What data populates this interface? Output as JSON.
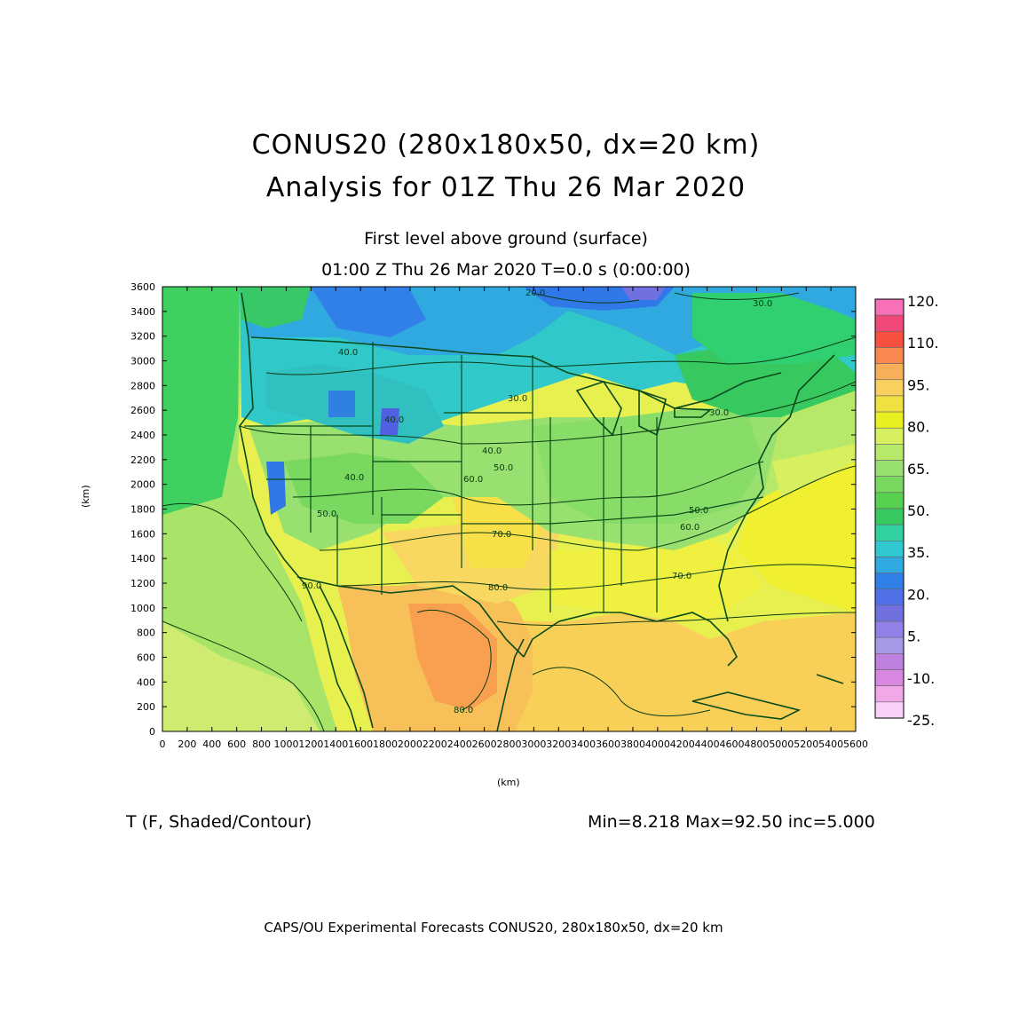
{
  "title": {
    "line1": "CONUS20 (280x180x50, dx=20 km)",
    "line2": "Analysis for 01Z Thu 26 Mar 2020"
  },
  "subtitle": {
    "level": "First level above ground (surface)",
    "time": "01:00 Z Thu 26 Mar 2020    T=0.0 s (0:00:00)"
  },
  "field": {
    "label": "T (F, Shaded/Contour)",
    "stats": "Min=8.218 Max=92.50 inc=5.000"
  },
  "footer": "CAPS/OU Experimental Forecasts   CONUS20, 280x180x50, dx=20 km",
  "axes": {
    "x_unit": "(km)",
    "y_unit": "(km)",
    "x_ticks": [
      "0",
      "200",
      "400",
      "600",
      "800",
      "1000",
      "1200",
      "1400",
      "1600",
      "1800",
      "2000",
      "2200",
      "2400",
      "2600",
      "2800",
      "3000",
      "3200",
      "3400",
      "3600",
      "3800",
      "4000",
      "4200",
      "4400",
      "4600",
      "4800",
      "5000",
      "5200",
      "5400",
      "5600"
    ],
    "y_ticks": [
      "0",
      "200",
      "400",
      "600",
      "800",
      "1000",
      "1200",
      "1400",
      "1600",
      "1800",
      "2000",
      "2200",
      "2400",
      "2600",
      "2800",
      "3000",
      "3200",
      "3400",
      "3600"
    ],
    "xlim": [
      0,
      5600
    ],
    "ylim": [
      0,
      3600
    ]
  },
  "colorbar": {
    "labels": [
      "120.",
      "110.",
      "95.",
      "80.",
      "65.",
      "50.",
      "35.",
      "20.",
      "5.",
      "-10.",
      "-25."
    ],
    "colors_top_to_bottom": [
      "#f870b8",
      "#f04878",
      "#f85040",
      "#f88850",
      "#f8b058",
      "#f8d060",
      "#f0e040",
      "#e8f020",
      "#d8f060",
      "#b8e868",
      "#98e070",
      "#78d860",
      "#58d050",
      "#38c860",
      "#30d0a0",
      "#30c8d0",
      "#30a8e0",
      "#3080e8",
      "#5070e8",
      "#7070e0",
      "#9080e8",
      "#a898e8",
      "#c080e0",
      "#d888e0",
      "#f0a8e8",
      "#f8d0f8"
    ]
  },
  "contour_labels": [
    "20.0",
    "30.0",
    "30.0",
    "30.0",
    "40.0",
    "40.0",
    "40.0",
    "40.0",
    "50.0",
    "50.0",
    "50.0",
    "60.0",
    "60.0",
    "70.0",
    "70.0",
    "80.0",
    "80.0",
    "90.0"
  ],
  "map": {
    "colors": {
      "boundary": "#0a4a1a",
      "water": "#2fb0d8"
    }
  }
}
